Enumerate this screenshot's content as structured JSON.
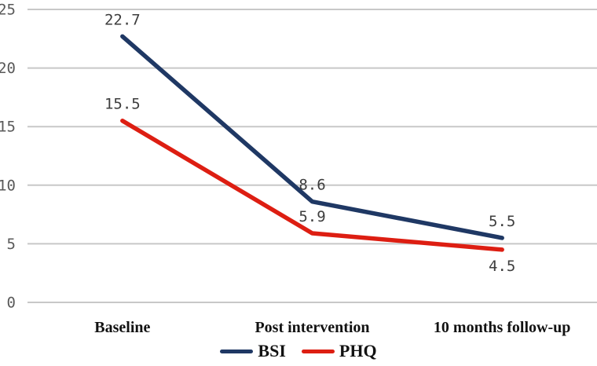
{
  "chart_data": {
    "type": "line",
    "title": "",
    "xlabel": "",
    "ylabel": "",
    "categories": [
      "Baseline",
      "Post intervention",
      "10 months follow-up"
    ],
    "series": [
      {
        "name": "BSI",
        "color": "#1f3864",
        "values": [
          22.7,
          8.6,
          5.5
        ],
        "label_sides": [
          "above",
          "above",
          "above"
        ]
      },
      {
        "name": "PHQ",
        "color": "#dd1e12",
        "values": [
          15.5,
          5.9,
          4.5
        ],
        "label_sides": [
          "above",
          "above",
          "below"
        ]
      }
    ],
    "y_ticks": [
      0,
      5,
      10,
      15,
      20,
      25
    ],
    "ylim": [
      0,
      25
    ],
    "grid": true,
    "legend_position": "bottom-center",
    "colors": {
      "gridline": "#c8c8c8",
      "tick_label": "#595959",
      "data_label": "#3d3d3d",
      "category_label": "#121212",
      "background": "#ffffff"
    }
  }
}
